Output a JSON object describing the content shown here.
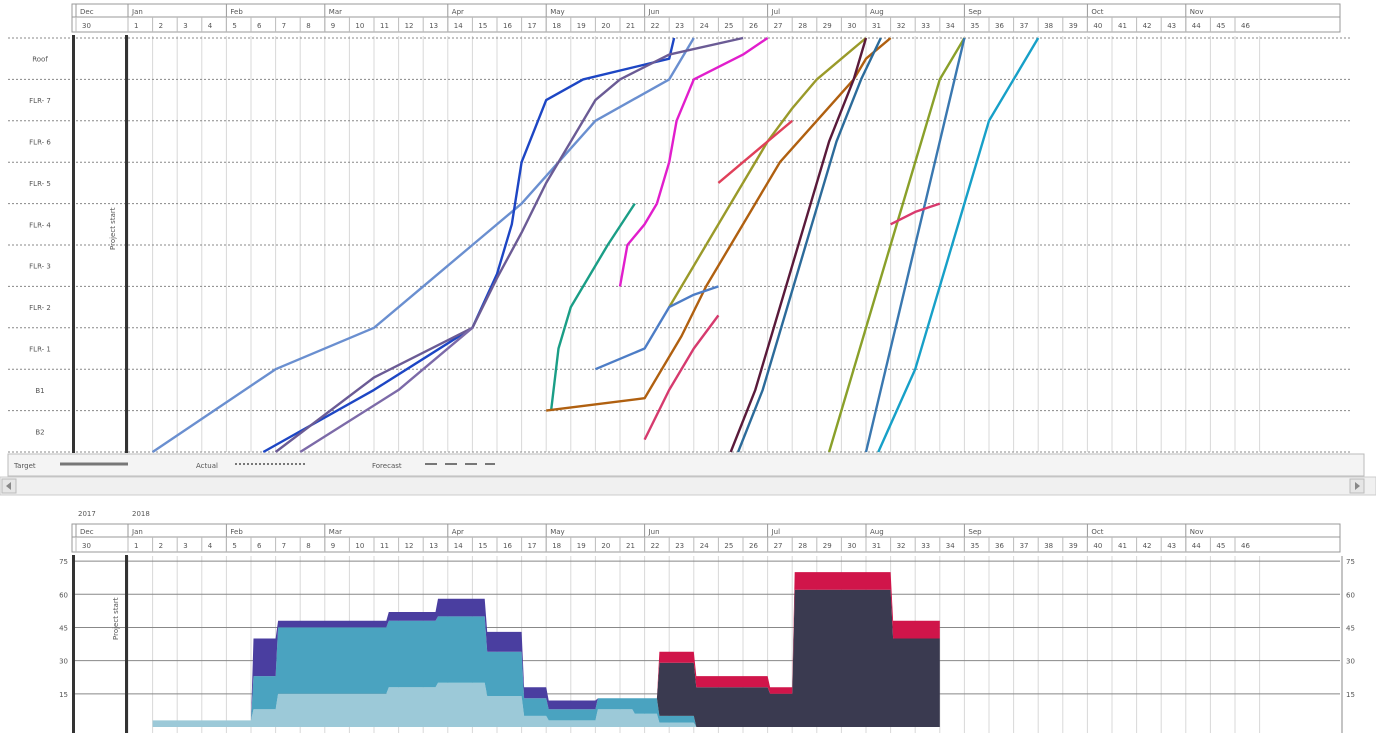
{
  "legend": {
    "target_label": "Target",
    "actual_label": "Actual",
    "forecast_label": "Forecast"
  },
  "timeline": {
    "months": [
      "Dec",
      "Jan",
      "Feb",
      "Mar",
      "Apr",
      "May",
      "Jun",
      "Jul",
      "Aug",
      "Sep",
      "Oct",
      "Nov"
    ],
    "weeks": [
      "30",
      "1",
      "2",
      "3",
      "4",
      "5",
      "6",
      "7",
      "8",
      "9",
      "10",
      "11",
      "12",
      "13",
      "14",
      "15",
      "16",
      "17",
      "18",
      "19",
      "20",
      "21",
      "22",
      "23",
      "24",
      "25",
      "26",
      "27",
      "28",
      "29",
      "30",
      "31",
      "32",
      "33",
      "34",
      "35",
      "36",
      "37",
      "38",
      "39",
      "40",
      "41",
      "42",
      "43",
      "44",
      "45",
      "46"
    ],
    "year_labels": [
      "2017",
      "2018"
    ],
    "project_start_label": "Project start"
  },
  "chart_data": [
    {
      "type": "line",
      "title": "",
      "xlabel": "",
      "ylabel": "",
      "ylim": [
        0,
        10
      ],
      "floors": [
        "B2",
        "B1",
        "FLR- 1",
        "FLR- 2",
        "FLR- 3",
        "FLR- 4",
        "FLR- 5",
        "FLR- 6",
        "FLR- 7",
        "Roof"
      ],
      "line_styles": {
        "target": "solid",
        "actual": "dotted",
        "forecast": "dashed"
      },
      "series": [
        {
          "name": "s1",
          "color": "#6a8fd0",
          "x": [
            1,
            6,
            10,
            12,
            14,
            16,
            19,
            22,
            23
          ],
          "y": [
            0,
            2,
            3,
            4,
            5,
            6,
            8,
            9,
            10
          ]
        },
        {
          "name": "s2",
          "color": "#1d46c4",
          "x": [
            5.5,
            10,
            14,
            15,
            15.6,
            16,
            17,
            18.5,
            22,
            22.2
          ],
          "y": [
            0,
            1.5,
            3,
            4.3,
            5.5,
            7,
            8.5,
            9,
            9.5,
            10
          ]
        },
        {
          "name": "s3",
          "color": "#6b5b95",
          "x": [
            6,
            10,
            14,
            15,
            16,
            17,
            18,
            19,
            20,
            22,
            25
          ],
          "y": [
            0,
            1.8,
            3,
            4.2,
            5.3,
            6.5,
            7.5,
            8.5,
            9,
            9.6,
            10
          ]
        },
        {
          "name": "s4",
          "color": "#7c6aa8",
          "x": [
            7,
            11,
            14
          ],
          "y": [
            0,
            1.5,
            3
          ]
        },
        {
          "name": "s5",
          "color": "#1a9e86",
          "x": [
            17.2,
            17.5,
            18,
            19.5,
            20.6
          ],
          "y": [
            1,
            2.5,
            3.5,
            5,
            6
          ]
        },
        {
          "name": "s6",
          "color": "#e11ecc",
          "x": [
            20,
            20.3,
            21,
            21.5,
            22,
            22.3,
            23,
            25,
            26
          ],
          "y": [
            4,
            5,
            5.5,
            6,
            7,
            8,
            9,
            9.6,
            10
          ]
        },
        {
          "name": "s7",
          "color": "#b06010",
          "x": [
            17,
            21,
            22.5,
            23.5,
            24.5,
            25.5,
            26.5,
            28,
            29.5,
            30,
            31
          ],
          "y": [
            1,
            1.3,
            2.8,
            4,
            5,
            6,
            7,
            8,
            9,
            9.5,
            10
          ]
        },
        {
          "name": "s8",
          "color": "#9a9a2a",
          "x": [
            22,
            23,
            24,
            25,
            26,
            27,
            28,
            29,
            30
          ],
          "y": [
            3.5,
            4.5,
            5.5,
            6.5,
            7.5,
            8.3,
            9,
            9.5,
            10
          ]
        },
        {
          "name": "s9",
          "color": "#e0405a",
          "x": [
            24,
            25,
            26,
            27
          ],
          "y": [
            6.5,
            7,
            7.5,
            8
          ]
        },
        {
          "name": "s10",
          "color": "#4d7dc6",
          "x": [
            19,
            21,
            22,
            23,
            24
          ],
          "y": [
            2,
            2.5,
            3.5,
            3.8,
            4
          ]
        },
        {
          "name": "s11",
          "color": "#d63a6e",
          "x": [
            21,
            22,
            23,
            24
          ],
          "y": [
            0.3,
            1.5,
            2.5,
            3.3
          ]
        },
        {
          "name": "s12",
          "color": "#5a1a3a",
          "x": [
            24.5,
            25.5,
            26.5,
            27.5,
            28.5,
            29.5,
            30
          ],
          "y": [
            0,
            1.5,
            3.5,
            5.5,
            7.5,
            9,
            10
          ]
        },
        {
          "name": "s13",
          "color": "#2c6b9a",
          "x": [
            24.8,
            25.8,
            26.8,
            27.8,
            28.8,
            29.8,
            30.6
          ],
          "y": [
            0,
            1.5,
            3.5,
            5.5,
            7.5,
            9,
            10
          ]
        },
        {
          "name": "s14",
          "color": "#8aa02a",
          "x": [
            28.5,
            29.5,
            30.5,
            31.5,
            32.5,
            33,
            34
          ],
          "y": [
            0,
            2,
            4,
            6,
            8,
            9,
            10
          ]
        },
        {
          "name": "s15",
          "color": "#3a78b0",
          "x": [
            30,
            31,
            32,
            33,
            34
          ],
          "y": [
            0,
            2.5,
            5,
            7.5,
            10
          ]
        },
        {
          "name": "s16",
          "color": "#17a0c8",
          "x": [
            30.5,
            32,
            33.5,
            35,
            37
          ],
          "y": [
            0,
            2,
            5,
            8,
            10
          ]
        },
        {
          "name": "s17",
          "color": "#d93a6e",
          "x": [
            31,
            32,
            33
          ],
          "y": [
            5.5,
            5.8,
            6
          ]
        }
      ]
    },
    {
      "type": "area",
      "title": "",
      "xlabel": "",
      "ylabel": "Project start",
      "ylim": [
        0,
        80
      ],
      "yticks": [
        15,
        30,
        45,
        60,
        75
      ],
      "series_colors": [
        "#9cc9d8",
        "#4aa3c0",
        "#4a3ea0",
        "#3a3a50",
        "#d0154a"
      ],
      "stacks": [
        {
          "x": 1,
          "values": [
            3,
            0,
            0,
            0,
            0
          ]
        },
        {
          "x": 5,
          "values": [
            3,
            0,
            0,
            0,
            0
          ]
        },
        {
          "x": 5.1,
          "values": [
            8,
            15,
            17,
            0,
            0
          ]
        },
        {
          "x": 6,
          "values": [
            8,
            15,
            17,
            0,
            0
          ]
        },
        {
          "x": 6.1,
          "values": [
            15,
            30,
            3,
            0,
            0
          ]
        },
        {
          "x": 10.5,
          "values": [
            15,
            30,
            3,
            0,
            0
          ]
        },
        {
          "x": 10.6,
          "values": [
            18,
            30,
            4,
            0,
            0
          ]
        },
        {
          "x": 12.5,
          "values": [
            18,
            30,
            4,
            0,
            0
          ]
        },
        {
          "x": 12.6,
          "values": [
            20,
            30,
            8,
            0,
            0
          ]
        },
        {
          "x": 14.5,
          "values": [
            20,
            30,
            8,
            0,
            0
          ]
        },
        {
          "x": 14.6,
          "values": [
            14,
            20,
            9,
            0,
            0
          ]
        },
        {
          "x": 16,
          "values": [
            14,
            20,
            9,
            0,
            0
          ]
        },
        {
          "x": 16.1,
          "values": [
            5,
            8,
            5,
            0,
            0
          ]
        },
        {
          "x": 17,
          "values": [
            5,
            8,
            5,
            0,
            0
          ]
        },
        {
          "x": 17.1,
          "values": [
            3,
            5,
            4,
            0,
            0
          ]
        },
        {
          "x": 19,
          "values": [
            3,
            5,
            4,
            0,
            0
          ]
        },
        {
          "x": 19.1,
          "values": [
            8,
            5,
            0,
            0,
            0
          ]
        },
        {
          "x": 20.5,
          "values": [
            8,
            5,
            0,
            0,
            0
          ]
        },
        {
          "x": 20.6,
          "values": [
            6,
            7,
            0,
            0,
            0
          ]
        },
        {
          "x": 21.5,
          "values": [
            6,
            7,
            0,
            0,
            0
          ]
        },
        {
          "x": 21.6,
          "values": [
            2,
            3,
            0,
            24,
            5
          ]
        },
        {
          "x": 23,
          "values": [
            2,
            3,
            0,
            24,
            5
          ]
        },
        {
          "x": 23.1,
          "values": [
            0,
            0,
            0,
            18,
            5
          ]
        },
        {
          "x": 26,
          "values": [
            0,
            0,
            0,
            18,
            5
          ]
        },
        {
          "x": 26.1,
          "values": [
            0,
            0,
            0,
            15,
            3
          ]
        },
        {
          "x": 27,
          "values": [
            0,
            0,
            0,
            15,
            3
          ]
        },
        {
          "x": 27.1,
          "values": [
            0,
            0,
            0,
            62,
            8
          ]
        },
        {
          "x": 31,
          "values": [
            0,
            0,
            0,
            62,
            8
          ]
        },
        {
          "x": 31.1,
          "values": [
            0,
            0,
            0,
            40,
            8
          ]
        },
        {
          "x": 33,
          "values": [
            0,
            0,
            0,
            40,
            8
          ]
        }
      ]
    }
  ]
}
